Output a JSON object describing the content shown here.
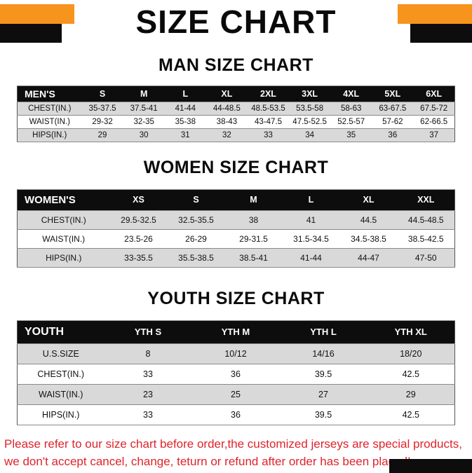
{
  "title": "SIZE CHART",
  "sections": [
    {
      "heading": "MAN SIZE CHART",
      "header": [
        "MEN'S",
        "S",
        "M",
        "L",
        "XL",
        "2XL",
        "3XL",
        "4XL",
        "5XL",
        "6XL"
      ],
      "rows": [
        {
          "label": "CHEST(IN.)",
          "values": [
            "35-37.5",
            "37.5-41",
            "41-44",
            "44-48.5",
            "48.5-53.5",
            "53.5-58",
            "58-63",
            "63-67.5",
            "67.5-72"
          ]
        },
        {
          "label": "WAIST(IN.)",
          "values": [
            "29-32",
            "32-35",
            "35-38",
            "38-43",
            "43-47.5",
            "47.5-52.5",
            "52.5-57",
            "57-62",
            "62-66.5"
          ]
        },
        {
          "label": "HIPS(IN.)",
          "values": [
            "29",
            "30",
            "31",
            "32",
            "33",
            "34",
            "35",
            "36",
            "37"
          ]
        }
      ]
    },
    {
      "heading": "WOMEN SIZE CHART",
      "header": [
        "WOMEN'S",
        "XS",
        "S",
        "M",
        "L",
        "XL",
        "XXL"
      ],
      "rows": [
        {
          "label": "CHEST(IN.)",
          "values": [
            "29.5-32.5",
            "32.5-35.5",
            "38",
            "41",
            "44.5",
            "44.5-48.5"
          ]
        },
        {
          "label": "WAIST(IN.)",
          "values": [
            "23.5-26",
            "26-29",
            "29-31.5",
            "31.5-34.5",
            "34.5-38.5",
            "38.5-42.5"
          ]
        },
        {
          "label": "HIPS(IN.)",
          "values": [
            "33-35.5",
            "35.5-38.5",
            "38.5-41",
            "41-44",
            "44-47",
            "47-50"
          ]
        }
      ]
    },
    {
      "heading": "YOUTH SIZE CHART",
      "header": [
        "YOUTH",
        "YTH S",
        "YTH M",
        "YTH L",
        "YTH XL"
      ],
      "rows": [
        {
          "label": "U.S.SIZE",
          "values": [
            "8",
            "10/12",
            "14/16",
            "18/20"
          ]
        },
        {
          "label": "CHEST(IN.)",
          "values": [
            "33",
            "36",
            "39.5",
            "42.5"
          ]
        },
        {
          "label": "WAIST(IN.)",
          "values": [
            "23",
            "25",
            "27",
            "29"
          ]
        },
        {
          "label": "HIPS(IN.)",
          "values": [
            "33",
            "36",
            "39.5",
            "42.5"
          ]
        }
      ]
    }
  ],
  "footer": {
    "line1": "Please refer to our size chart before order,the customized jerseys are special products,",
    "line2": "we don't accept cancel, change, teturn or refund after order has been placed!"
  },
  "colors": {
    "accent_orange": "#f7941d",
    "table_header_black": "#0d0d0d",
    "row_stripe_gray": "#d9d9d9",
    "footer_red": "#e0232b"
  }
}
